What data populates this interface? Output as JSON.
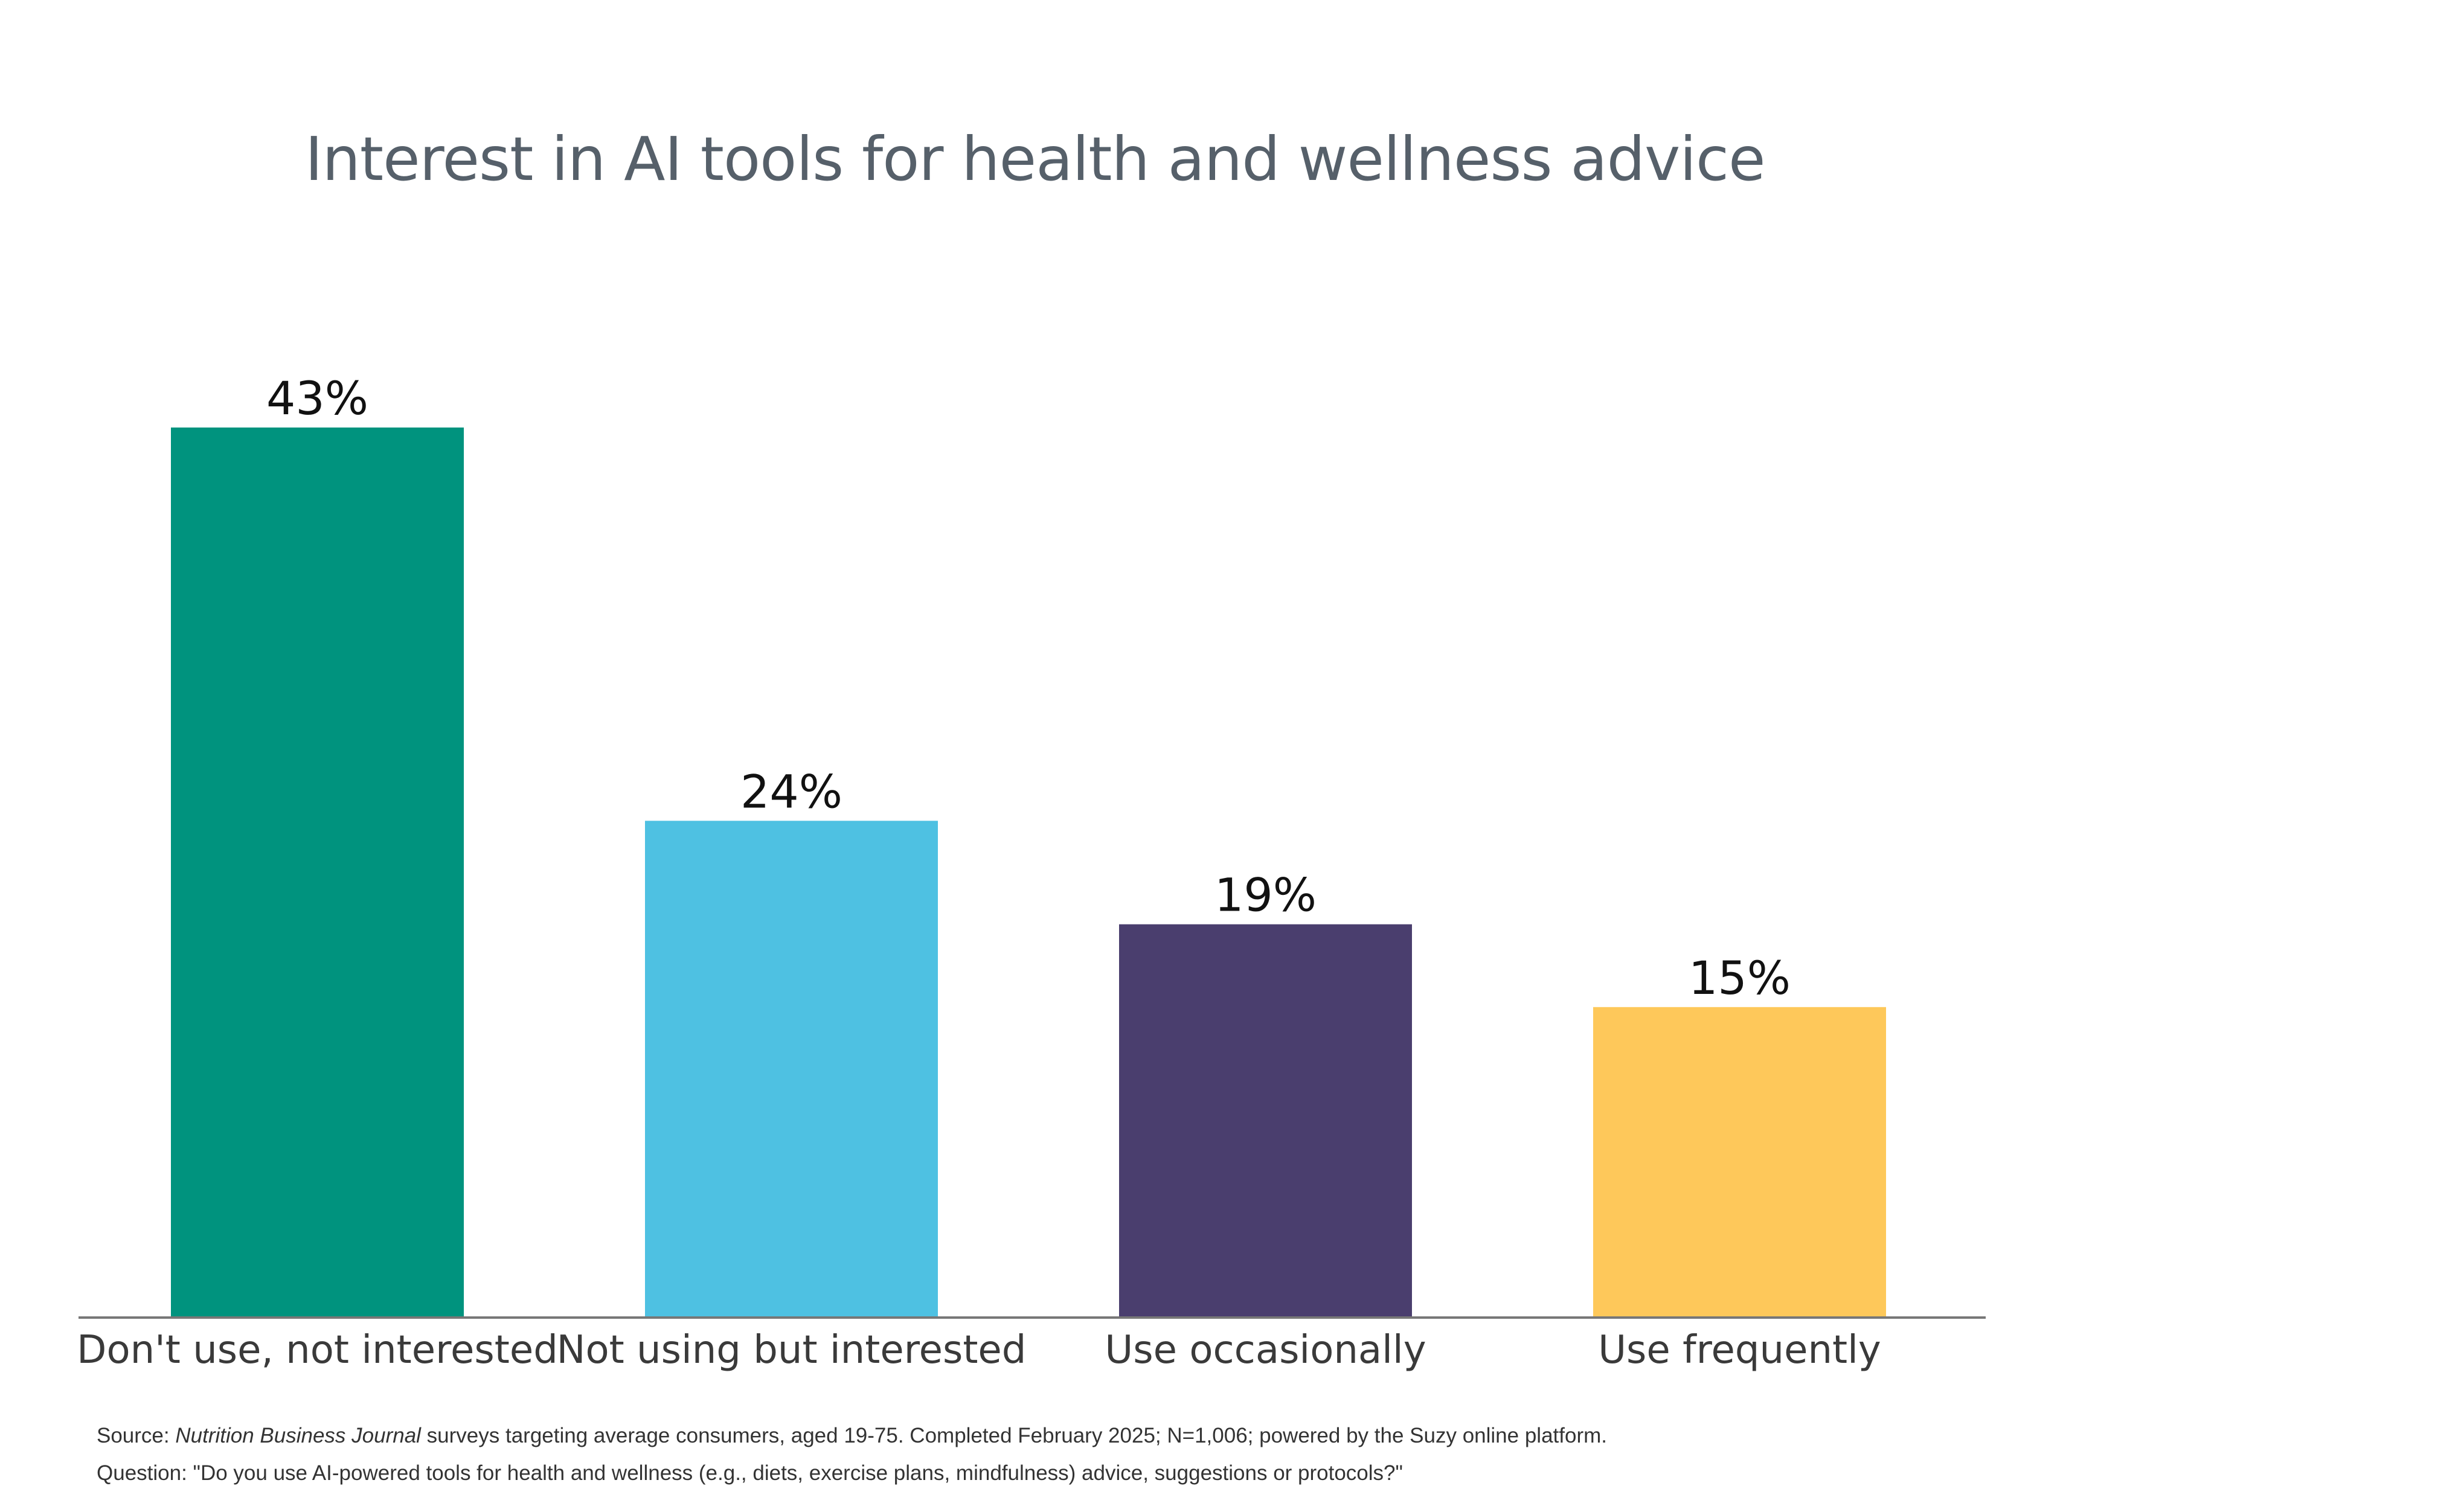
{
  "chart_data": {
    "type": "bar",
    "title": "Interest in AI tools for health and wellness advice",
    "categories": [
      "Don't use, not interested",
      "Not using but interested",
      "Use occasionally",
      "Use frequently"
    ],
    "values": [
      43,
      24,
      19,
      15
    ],
    "value_labels": [
      "43%",
      "24%",
      "19%",
      "15%"
    ],
    "colors": [
      "#00937e",
      "#4ec1e2",
      "#4a3e6e",
      "#fec85a"
    ],
    "unit": "%",
    "ylim": [
      0,
      43
    ],
    "grid": false,
    "legend": "none",
    "xlabel": "",
    "ylabel": ""
  },
  "footer": {
    "source_prefix": "Source: ",
    "source_publication": "Nutrition Business Journal",
    "source_rest": " surveys targeting average consumers, aged 19-75. Completed February 2025; N=1,006; powered by the Suzy online platform.",
    "question": "Question: \"Do you use AI-powered tools for health and wellness (e.g., diets, exercise plans, mindfulness) advice, suggestions or protocols?\""
  },
  "axis_color": "#777777"
}
